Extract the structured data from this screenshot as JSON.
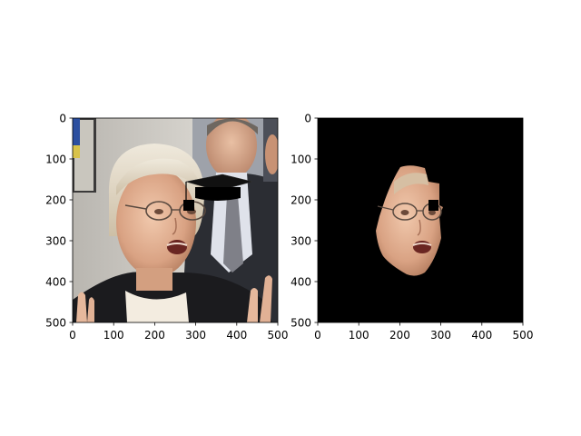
{
  "figure": {
    "panels": [
      {
        "name": "left",
        "content": "photo of a woman's face with a graduation cap overlay",
        "background": "#c8c4bd",
        "axes": {
          "x_ticks": [
            "0",
            "100",
            "200",
            "300",
            "400",
            "500"
          ],
          "y_ticks": [
            "0",
            "100",
            "200",
            "300",
            "400",
            "500"
          ],
          "x_range": [
            0,
            500
          ],
          "y_range": [
            0,
            500
          ],
          "y_inverted": true
        }
      },
      {
        "name": "right",
        "content": "segmented face on black background",
        "background": "#000000",
        "axes": {
          "x_ticks": [
            "0",
            "100",
            "200",
            "300",
            "400",
            "500"
          ],
          "y_ticks": [
            "0",
            "100",
            "200",
            "300",
            "400",
            "500"
          ],
          "x_range": [
            0,
            500
          ],
          "y_range": [
            0,
            500
          ],
          "y_inverted": true
        }
      }
    ]
  }
}
